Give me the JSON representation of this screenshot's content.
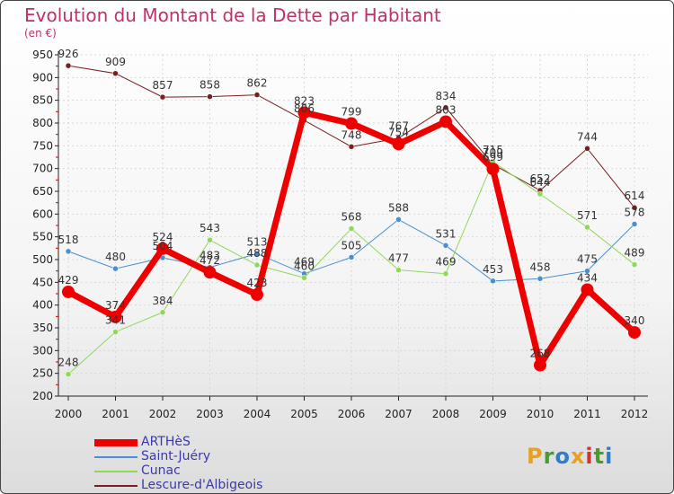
{
  "header": {
    "title": "Evolution du Montant de la Dette par Habitant",
    "unit": "(en €)"
  },
  "logo": {
    "text": "Proxiti",
    "colors": [
      "#e8a020",
      "#4a9a30",
      "#2e7dc8",
      "#e8a020",
      "#d83030",
      "#4a9a30",
      "#2e7dc8"
    ]
  },
  "chart_data": {
    "type": "line",
    "categories": [
      "2000",
      "2001",
      "2002",
      "2003",
      "2004",
      "2005",
      "2006",
      "2007",
      "2008",
      "2009",
      "2010",
      "2011",
      "2012"
    ],
    "ylim": [
      200,
      950
    ],
    "yticks": [
      200,
      250,
      300,
      350,
      400,
      450,
      500,
      550,
      600,
      650,
      700,
      750,
      800,
      850,
      900,
      950
    ],
    "grid": true,
    "legend_position": "bottom-left",
    "series": [
      {
        "name": "Lescure-d'Albigeois",
        "color": "#7a1e22",
        "values": [
          926,
          909,
          857,
          858,
          862,
          806,
          748,
          767,
          834,
          709,
          652,
          744,
          614
        ],
        "labels": [
          "926",
          "909",
          "857",
          "858",
          "862",
          "806",
          "748",
          "767",
          "834",
          "709",
          "652",
          "744",
          "614"
        ]
      },
      {
        "name": "Saint-Juéry",
        "color": "#4a8fd0",
        "values": [
          518,
          480,
          504,
          483,
          513,
          469,
          505,
          588,
          531,
          453,
          458,
          475,
          578
        ],
        "labels": [
          "518",
          "480",
          "504",
          "483",
          "513",
          "469",
          "505",
          "588",
          "531",
          "453",
          "458",
          "475",
          "578"
        ]
      },
      {
        "name": "Cunac",
        "color": "#8fd85a",
        "values": [
          248,
          341,
          384,
          543,
          488,
          460,
          568,
          477,
          469,
          715,
          644,
          571,
          489
        ],
        "labels": [
          "248",
          "341",
          "384",
          "543",
          "488",
          "460",
          "568",
          "477",
          "469",
          "715",
          "644",
          "571",
          "489"
        ]
      },
      {
        "name": "ARTHèS",
        "color": "#ee0000",
        "values": [
          429,
          374,
          524,
          472,
          423,
          823,
          799,
          754,
          803,
          699,
          268,
          434,
          340
        ],
        "labels": [
          "429",
          "374",
          "524",
          "472",
          "423",
          "823",
          "799",
          "754",
          "803",
          "699",
          "268",
          "434",
          "340"
        ]
      }
    ],
    "legend_order": [
      "ARTHèS",
      "Saint-Juéry",
      "Cunac",
      "Lescure-d'Albigeois"
    ]
  }
}
